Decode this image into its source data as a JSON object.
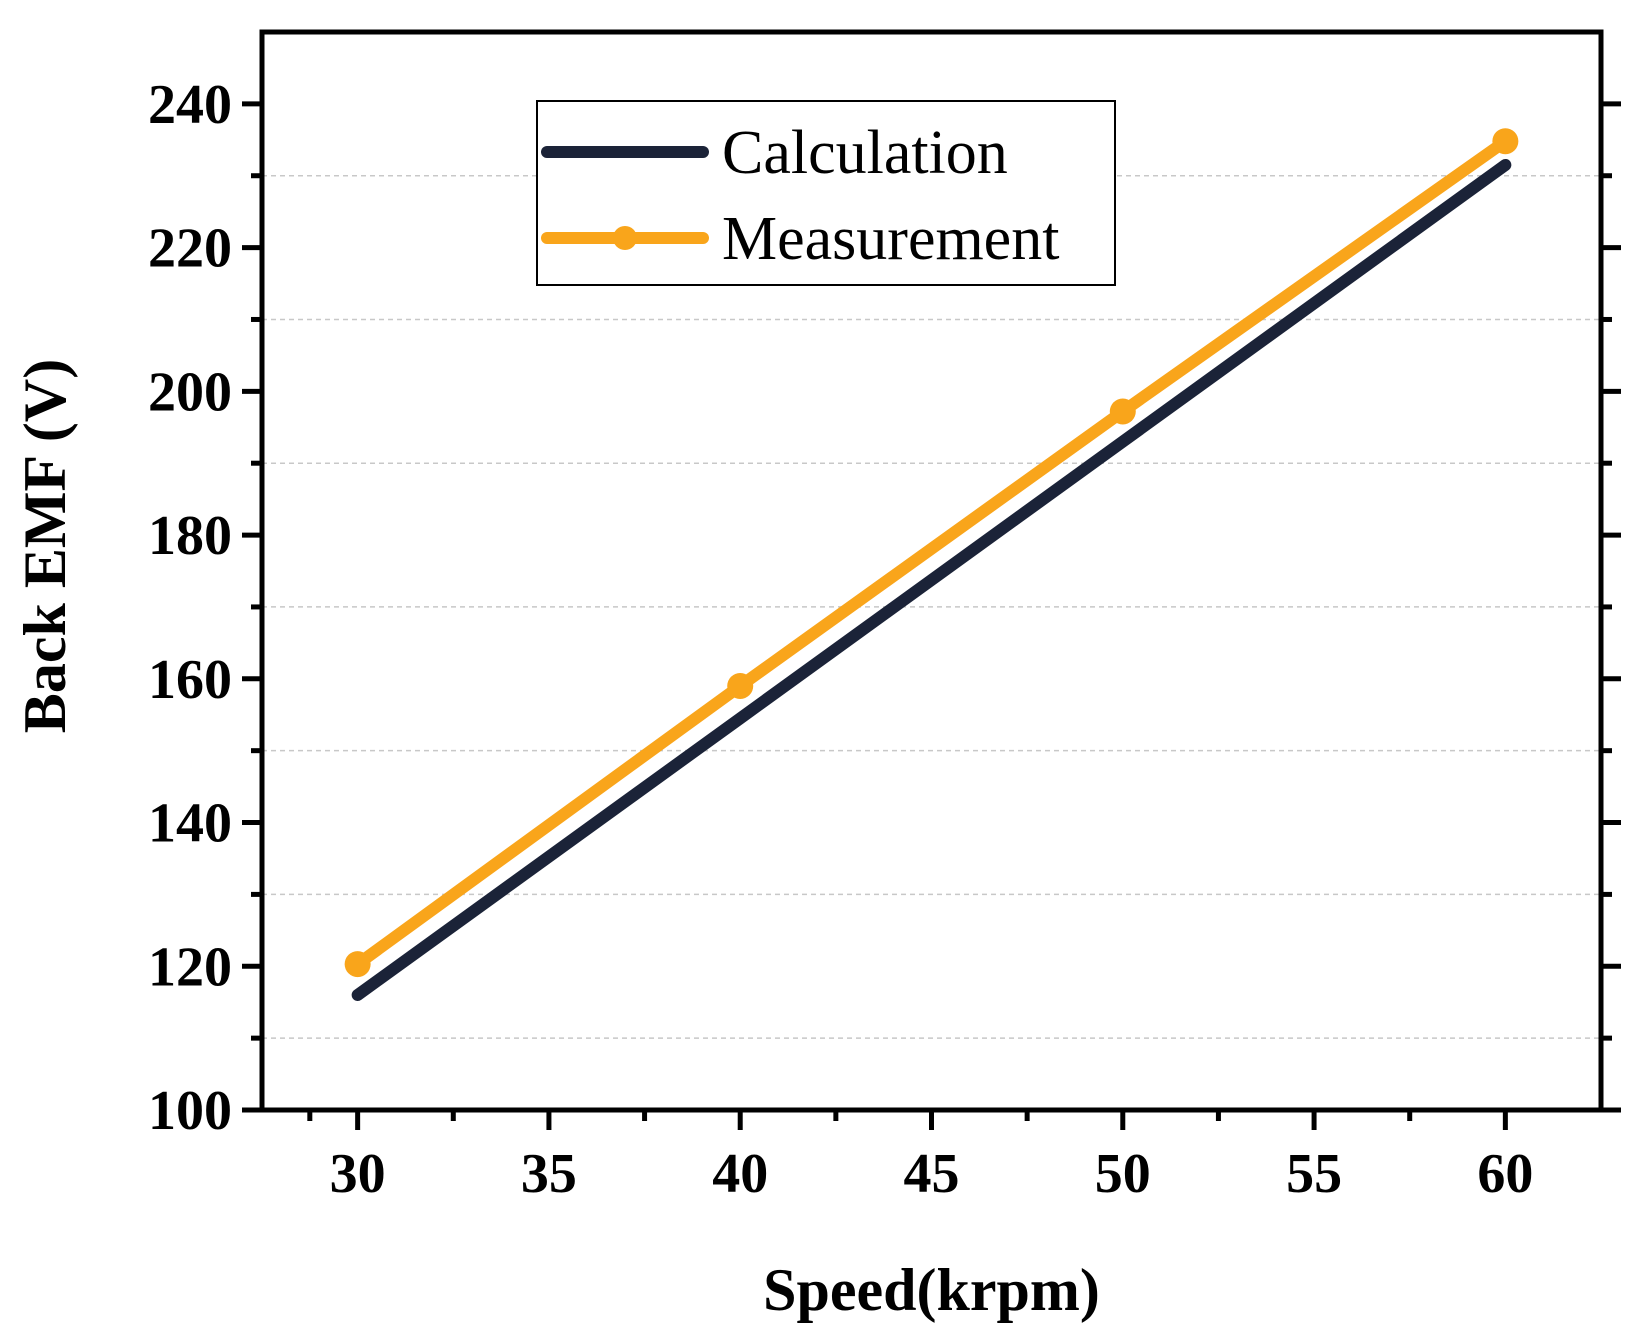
{
  "chart_data": {
    "type": "line",
    "title": "",
    "xlabel": "Speed(krpm)",
    "ylabel": "Back EMF (V)",
    "xlim": [
      27.5,
      62.5
    ],
    "ylim": [
      100,
      250
    ],
    "x_ticks": [
      30,
      35,
      40,
      45,
      50,
      55,
      60
    ],
    "x_tick_labels": [
      "30",
      "35",
      "40",
      "45",
      "50",
      "55",
      "60"
    ],
    "y_ticks": [
      100,
      120,
      140,
      160,
      180,
      200,
      220,
      240
    ],
    "y_tick_labels": [
      "100",
      "120",
      "140",
      "160",
      "180",
      "200",
      "220",
      "240"
    ],
    "y_minor_ticks": [
      110,
      130,
      150,
      170,
      190,
      210,
      230
    ],
    "grid": "horizontal dashed at minor y ticks",
    "legend_position": "top-left",
    "series": [
      {
        "name": "Calculation",
        "color": "#1b2338",
        "marker": "none",
        "x": [
          30,
          40,
          50,
          60
        ],
        "values": [
          116,
          154.5,
          193,
          231.5
        ]
      },
      {
        "name": "Measurement",
        "color": "#f9a51b",
        "marker": "circle",
        "x": [
          30,
          40,
          50,
          60
        ],
        "values": [
          120.3,
          159,
          197.2,
          234.8
        ]
      }
    ]
  }
}
